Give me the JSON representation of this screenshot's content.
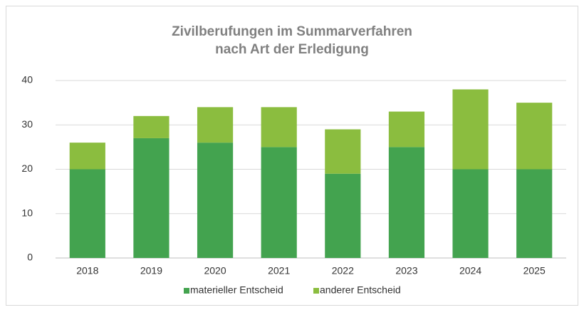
{
  "chart_data": {
    "type": "stacked_bar",
    "title": [
      "Zivilberufungen im Summarverfahren",
      "nach Art der Erledigung"
    ],
    "categories": [
      "2018",
      "2019",
      "2020",
      "2021",
      "2022",
      "2023",
      "2024",
      "2025"
    ],
    "series": [
      {
        "name": "materieller Entscheid",
        "color": "#43a34f",
        "values": [
          20,
          27,
          26,
          25,
          19,
          25,
          20,
          20
        ]
      },
      {
        "name": "anderer Entscheid",
        "color": "#8bbd3f",
        "values": [
          6,
          5,
          8,
          9,
          10,
          8,
          18,
          15
        ]
      }
    ],
    "ylim": [
      0,
      40
    ],
    "yticks": [
      0,
      10,
      20,
      30,
      40
    ],
    "grid": true,
    "legend": "bottom"
  }
}
